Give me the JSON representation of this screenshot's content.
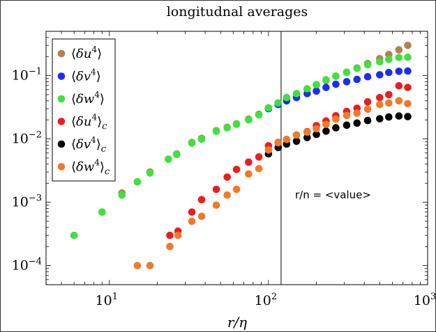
{
  "chart_data": {
    "type": "scatter",
    "title": "longitudnal averages",
    "xlabel": "r/η",
    "ylabel": "",
    "xscale": "log",
    "yscale": "log",
    "xlim": [
      4,
      1000
    ],
    "ylim": [
      5e-05,
      0.5
    ],
    "xticks": [
      {
        "value": 10,
        "base": "10",
        "exp": "1"
      },
      {
        "value": 100,
        "base": "10",
        "exp": "2"
      },
      {
        "value": 1000,
        "base": "10",
        "exp": "3"
      }
    ],
    "yticks": [
      {
        "value": 0.0001,
        "base": "10",
        "exp": "−4"
      },
      {
        "value": 0.001,
        "base": "10",
        "exp": "−3"
      },
      {
        "value": 0.01,
        "base": "10",
        "exp": "−2"
      },
      {
        "value": 0.1,
        "base": "10",
        "exp": "−1"
      }
    ],
    "legend_position": "top-left",
    "vline": {
      "x": 120,
      "label": "r/n = <value>"
    },
    "series": [
      {
        "name": "⟨δu⁴⟩",
        "base": "δu",
        "sub": "",
        "color": "#b5804a",
        "points": [
          [
            6,
            0.0003
          ],
          [
            9,
            0.0007
          ],
          [
            12,
            0.0014
          ],
          [
            15,
            0.0021
          ],
          [
            18,
            0.003
          ],
          [
            23.5,
            0.0048
          ],
          [
            26.5,
            0.0058
          ],
          [
            33,
            0.0088
          ],
          [
            38,
            0.0102
          ],
          [
            47,
            0.0135
          ],
          [
            55,
            0.0153
          ],
          [
            63,
            0.0173
          ],
          [
            75,
            0.0205
          ],
          [
            87,
            0.0245
          ],
          [
            100,
            0.031
          ],
          [
            115,
            0.037
          ],
          [
            130,
            0.044
          ],
          [
            150,
            0.051
          ],
          [
            175,
            0.061
          ],
          [
            200,
            0.071
          ],
          [
            230,
            0.084
          ],
          [
            265,
            0.098
          ],
          [
            310,
            0.113
          ],
          [
            360,
            0.132
          ],
          [
            420,
            0.155
          ],
          [
            500,
            0.185
          ],
          [
            570,
            0.215
          ],
          [
            660,
            0.255
          ],
          [
            750,
            0.3
          ]
        ]
      },
      {
        "name": "⟨δv⁴⟩",
        "base": "δv",
        "sub": "",
        "color": "#1a2ef0",
        "points": [
          [
            100,
            0.03
          ],
          [
            115,
            0.035
          ],
          [
            130,
            0.04
          ],
          [
            150,
            0.045
          ],
          [
            175,
            0.052
          ],
          [
            200,
            0.057
          ],
          [
            230,
            0.065
          ],
          [
            265,
            0.073
          ],
          [
            310,
            0.08
          ],
          [
            360,
            0.087
          ],
          [
            420,
            0.096
          ],
          [
            500,
            0.103
          ],
          [
            570,
            0.112
          ],
          [
            660,
            0.117
          ],
          [
            750,
            0.118
          ]
        ]
      },
      {
        "name": "⟨δw⁴⟩",
        "base": "δw",
        "sub": "",
        "color": "#3ee23e",
        "points": [
          [
            6,
            0.0003
          ],
          [
            9,
            0.0007
          ],
          [
            12,
            0.0013
          ],
          [
            15,
            0.0021
          ],
          [
            18,
            0.0029
          ],
          [
            23.5,
            0.0048
          ],
          [
            26.5,
            0.0057
          ],
          [
            33,
            0.0086
          ],
          [
            38,
            0.0099
          ],
          [
            47,
            0.0132
          ],
          [
            55,
            0.015
          ],
          [
            63,
            0.017
          ],
          [
            75,
            0.02
          ],
          [
            87,
            0.024
          ],
          [
            100,
            0.031
          ],
          [
            115,
            0.037
          ],
          [
            130,
            0.045
          ],
          [
            150,
            0.052
          ],
          [
            175,
            0.062
          ],
          [
            200,
            0.072
          ],
          [
            230,
            0.086
          ],
          [
            265,
            0.098
          ],
          [
            310,
            0.112
          ],
          [
            360,
            0.13
          ],
          [
            420,
            0.148
          ],
          [
            500,
            0.165
          ],
          [
            570,
            0.18
          ],
          [
            660,
            0.193
          ],
          [
            750,
            0.195
          ]
        ]
      },
      {
        "name": "⟨δu⁴⟩c",
        "base": "δu",
        "sub": "c",
        "color": "#ee1c1c",
        "points": [
          [
            24,
            0.0003
          ],
          [
            27,
            0.00035
          ],
          [
            33,
            0.0007
          ],
          [
            38,
            0.0011
          ],
          [
            47,
            0.0016
          ],
          [
            55,
            0.0025
          ],
          [
            63,
            0.0033
          ],
          [
            75,
            0.0043
          ],
          [
            87,
            0.0052
          ],
          [
            100,
            0.0078
          ],
          [
            115,
            0.0088
          ],
          [
            130,
            0.0098
          ],
          [
            150,
            0.0115
          ],
          [
            175,
            0.013
          ],
          [
            200,
            0.0162
          ],
          [
            230,
            0.0192
          ],
          [
            265,
            0.0232
          ],
          [
            310,
            0.0272
          ],
          [
            360,
            0.0305
          ],
          [
            420,
            0.0385
          ],
          [
            500,
            0.045
          ],
          [
            570,
            0.05
          ],
          [
            660,
            0.069
          ],
          [
            750,
            0.065
          ]
        ]
      },
      {
        "name": "⟨δv⁴⟩c",
        "base": "δv",
        "sub": "c",
        "color": "#000000",
        "points": [
          [
            100,
            0.0058
          ],
          [
            115,
            0.0073
          ],
          [
            130,
            0.0083
          ],
          [
            150,
            0.0092
          ],
          [
            175,
            0.0105
          ],
          [
            200,
            0.0118
          ],
          [
            230,
            0.0133
          ],
          [
            265,
            0.015
          ],
          [
            310,
            0.0165
          ],
          [
            360,
            0.0178
          ],
          [
            420,
            0.0195
          ],
          [
            500,
            0.0208
          ],
          [
            570,
            0.0222
          ],
          [
            660,
            0.023
          ],
          [
            750,
            0.0225
          ]
        ]
      },
      {
        "name": "⟨δw⁴⟩c",
        "base": "δw",
        "sub": "c",
        "color": "#f07a28",
        "points": [
          [
            15,
            0.0001
          ],
          [
            18,
            0.0001
          ],
          [
            24,
            0.0002
          ],
          [
            27,
            0.0003
          ],
          [
            33,
            0.0005
          ],
          [
            38,
            0.0006
          ],
          [
            47,
            0.0009
          ],
          [
            55,
            0.0013
          ],
          [
            63,
            0.0016
          ],
          [
            75,
            0.0028
          ],
          [
            87,
            0.0034
          ],
          [
            100,
            0.0067
          ],
          [
            115,
            0.0087
          ],
          [
            130,
            0.0098
          ],
          [
            150,
            0.0115
          ],
          [
            175,
            0.0128
          ],
          [
            200,
            0.0145
          ],
          [
            230,
            0.017
          ],
          [
            265,
            0.0205
          ],
          [
            310,
            0.0235
          ],
          [
            360,
            0.0255
          ],
          [
            420,
            0.0295
          ],
          [
            500,
            0.035
          ],
          [
            570,
            0.037
          ],
          [
            660,
            0.04
          ],
          [
            750,
            0.036
          ]
        ]
      }
    ]
  }
}
